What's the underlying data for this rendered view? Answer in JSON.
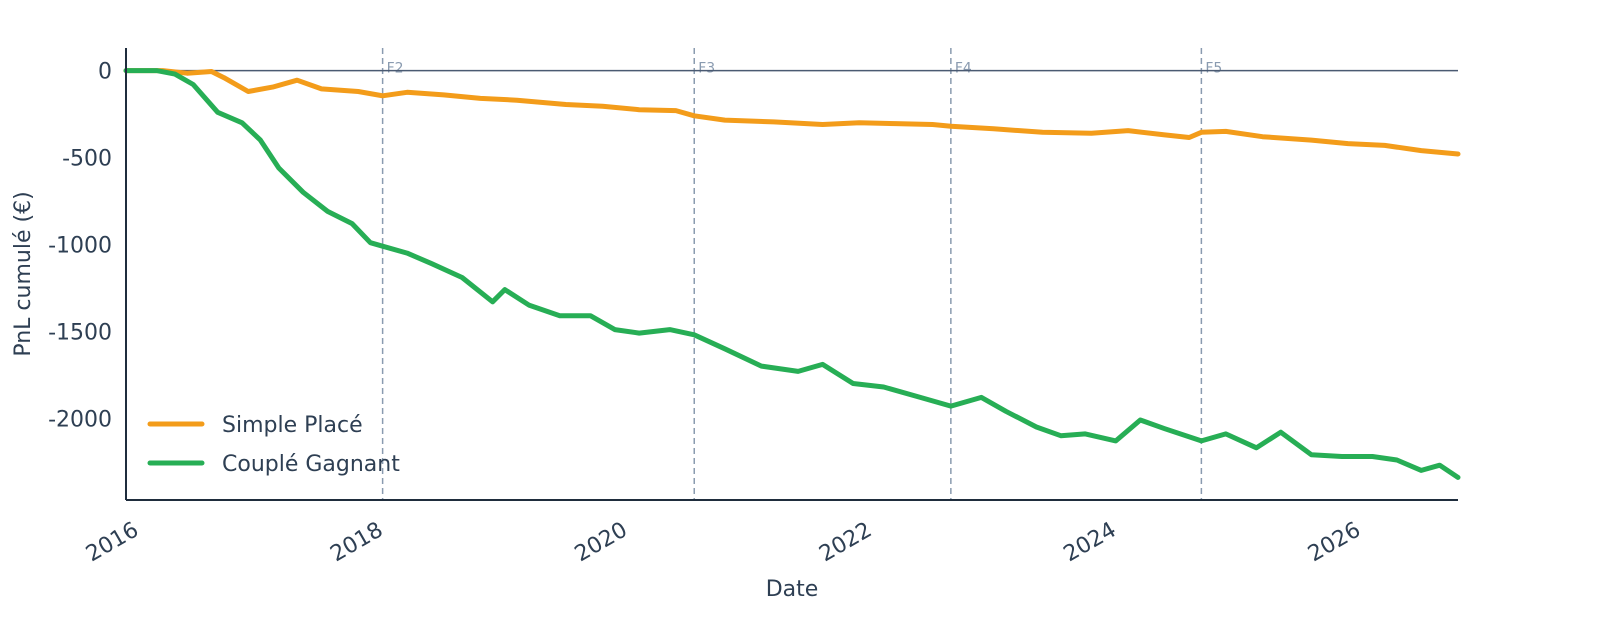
{
  "chart_data": {
    "type": "line",
    "title": "",
    "xlabel": "Date",
    "ylabel": "PnL cumulé (€)",
    "xlim": [
      2016.0,
      2026.9
    ],
    "ylim": [
      -2470,
      130
    ],
    "x_ticks": [
      2016,
      2018,
      2020,
      2022,
      2024,
      2026
    ],
    "x_tick_labels": [
      "2016",
      "2018",
      "2020",
      "2022",
      "2024",
      "2026"
    ],
    "y_ticks": [
      0,
      -500,
      -1000,
      -1500,
      -2000
    ],
    "y_tick_labels": [
      "0",
      "-500",
      "-1000",
      "-1500",
      "-2000"
    ],
    "grid": false,
    "zero_line": true,
    "legend_position": "bottom-left",
    "vertical_markers": [
      {
        "x": 2018.1,
        "label": "F2"
      },
      {
        "x": 2020.65,
        "label": "F3"
      },
      {
        "x": 2022.75,
        "label": "F4"
      },
      {
        "x": 2024.8,
        "label": "F5"
      }
    ],
    "series": [
      {
        "name": "Simple Placé",
        "color": "#f39c1a",
        "x": [
          2016.0,
          2016.3,
          2016.5,
          2016.7,
          2016.8,
          2017.0,
          2017.2,
          2017.4,
          2017.6,
          2017.9,
          2018.1,
          2018.3,
          2018.6,
          2018.9,
          2019.2,
          2019.6,
          2019.9,
          2020.2,
          2020.5,
          2020.65,
          2020.9,
          2021.3,
          2021.7,
          2022.0,
          2022.3,
          2022.6,
          2022.75,
          2023.1,
          2023.5,
          2023.9,
          2024.2,
          2024.5,
          2024.7,
          2024.8,
          2025.0,
          2025.3,
          2025.7,
          2026.0,
          2026.3,
          2026.6,
          2026.9
        ],
        "values": [
          0,
          0,
          -15,
          -5,
          -40,
          -120,
          -95,
          -55,
          -105,
          -120,
          -145,
          -125,
          -140,
          -160,
          -170,
          -195,
          -205,
          -225,
          -230,
          -260,
          -285,
          -295,
          -310,
          -300,
          -305,
          -310,
          -320,
          -335,
          -355,
          -360,
          -345,
          -370,
          -385,
          -355,
          -350,
          -380,
          -400,
          -420,
          -430,
          -460,
          -480
        ]
      },
      {
        "name": "Couplé Gagnant",
        "color": "#27ae55",
        "x": [
          2016.0,
          2016.25,
          2016.4,
          2016.55,
          2016.75,
          2016.95,
          2017.1,
          2017.25,
          2017.45,
          2017.65,
          2017.85,
          2018.0,
          2018.1,
          2018.3,
          2018.5,
          2018.75,
          2019.0,
          2019.1,
          2019.3,
          2019.55,
          2019.8,
          2020.0,
          2020.2,
          2020.45,
          2020.65,
          2020.9,
          2021.2,
          2021.5,
          2021.7,
          2021.95,
          2022.2,
          2022.5,
          2022.75,
          2023.0,
          2023.2,
          2023.45,
          2023.65,
          2023.85,
          2024.1,
          2024.3,
          2024.5,
          2024.8,
          2025.0,
          2025.25,
          2025.45,
          2025.7,
          2025.95,
          2026.2,
          2026.4,
          2026.6,
          2026.75,
          2026.9
        ],
        "values": [
          0,
          0,
          -20,
          -80,
          -240,
          -300,
          -400,
          -560,
          -700,
          -810,
          -880,
          -990,
          -1010,
          -1050,
          -1110,
          -1190,
          -1330,
          -1260,
          -1350,
          -1410,
          -1410,
          -1490,
          -1510,
          -1490,
          -1520,
          -1600,
          -1700,
          -1730,
          -1690,
          -1800,
          -1820,
          -1880,
          -1930,
          -1880,
          -1960,
          -2050,
          -2100,
          -2090,
          -2130,
          -2010,
          -2060,
          -2130,
          -2090,
          -2170,
          -2080,
          -2210,
          -2220,
          -2220,
          -2240,
          -2300,
          -2270,
          -2340
        ]
      }
    ]
  }
}
